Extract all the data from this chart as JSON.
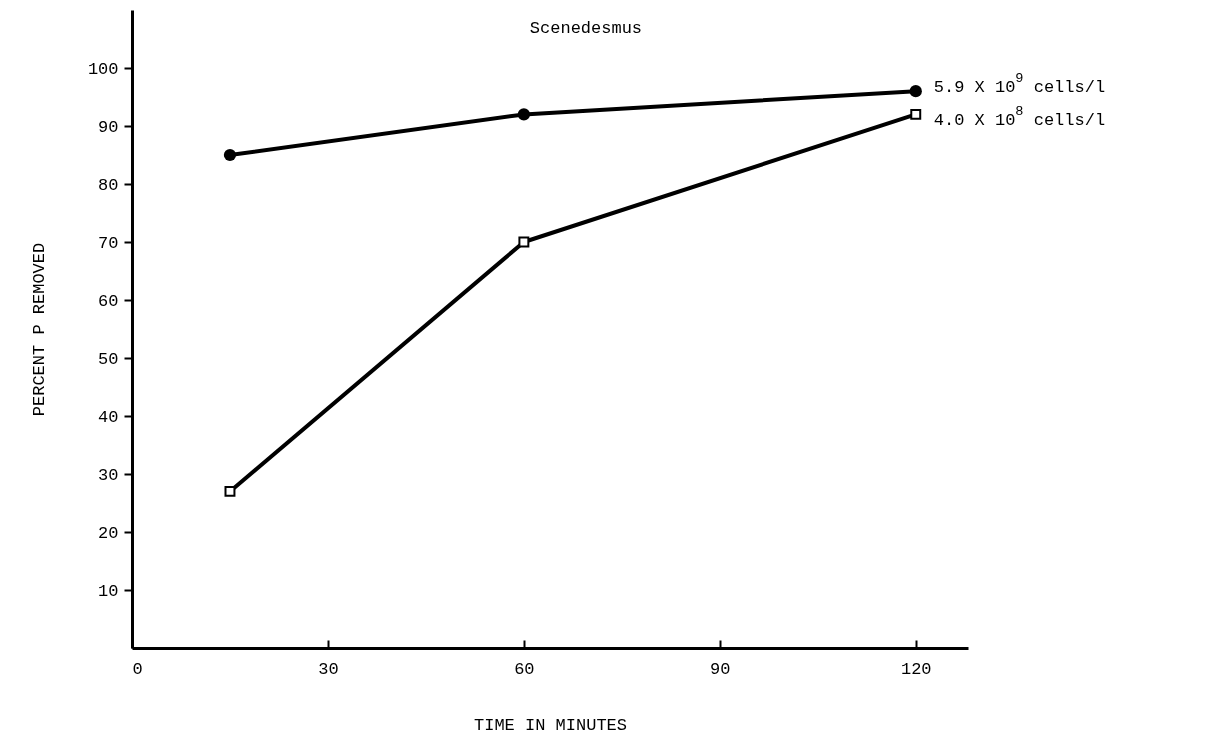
{
  "chart_data": {
    "type": "line",
    "title": "Scenedesmus",
    "xlabel": "TIME IN MINUTES",
    "ylabel": "PERCENT P REMOVED",
    "x": [
      15,
      60,
      120
    ],
    "series": [
      {
        "name": "5.9 X 10$^{9}$ cells/l",
        "color": "#000000",
        "marker": "circle",
        "values": [
          85,
          92,
          96
        ]
      },
      {
        "name": "4.0 X 10$^{8}$ cells/l",
        "color": "#000000",
        "marker": "square",
        "values": [
          27,
          70,
          92
        ]
      }
    ],
    "xlim": [
      0,
      128
    ],
    "xticks": [
      0,
      30,
      60,
      90,
      120
    ],
    "ylim": [
      0,
      110
    ],
    "yticks": [
      10,
      20,
      30,
      40,
      50,
      60,
      70,
      80,
      90,
      100
    ],
    "grid": false,
    "line_style": "solid"
  }
}
